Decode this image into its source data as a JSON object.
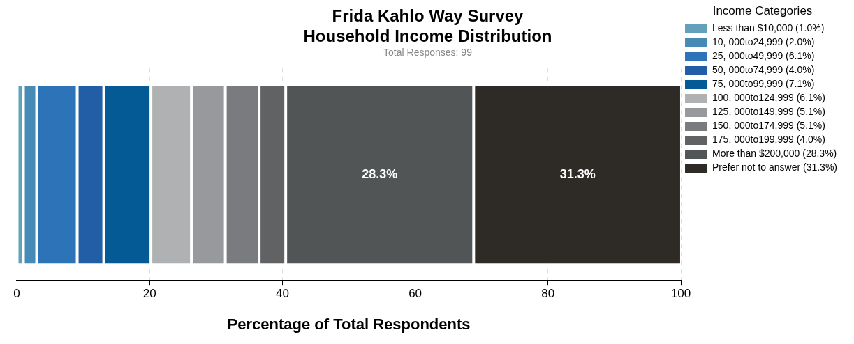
{
  "chart_data": {
    "type": "bar",
    "title": "Frida Kahlo Way Survey\nHousehold Income Distribution",
    "subtitle": "Total Responses: 99",
    "xlabel": "Percentage of Total Respondents",
    "legend_title": "Income Categories",
    "orientation": "horizontal",
    "stacked": true,
    "categories": [
      null
    ],
    "xlim": [
      0,
      100
    ],
    "xticks": [
      0,
      20,
      40,
      60,
      80,
      100
    ],
    "grid": "x",
    "legend": "right",
    "series": [
      {
        "name": "Less than $10,000 (1.0%)",
        "color": "#62a0bc",
        "values": [
          1.0
        ]
      },
      {
        "name": "10, 000to24,999 (2.0%)",
        "color": "#478ab5",
        "values": [
          2.0
        ]
      },
      {
        "name": "25, 000to49,999 (6.1%)",
        "color": "#2c74b7",
        "values": [
          6.1
        ]
      },
      {
        "name": "50, 000to74,999 (4.0%)",
        "color": "#215ea6",
        "values": [
          4.0
        ]
      },
      {
        "name": "75, 000to99,999 (7.1%)",
        "color": "#045a94",
        "values": [
          7.1
        ]
      },
      {
        "name": "100, 000to124,999 (6.1%)",
        "color": "#b0b1b3",
        "values": [
          6.1
        ]
      },
      {
        "name": "125, 000to149,999 (5.1%)",
        "color": "#98999c",
        "values": [
          5.1
        ]
      },
      {
        "name": "150, 000to174,999 (5.1%)",
        "color": "#7a7b7f",
        "values": [
          5.1
        ]
      },
      {
        "name": "175, 000to199,999 (4.0%)",
        "color": "#616264",
        "values": [
          4.0
        ]
      },
      {
        "name": "More than $200,000 (28.3%)",
        "color": "#525556",
        "values": [
          28.3
        ],
        "value_labels": [
          "28.3%"
        ]
      },
      {
        "name": "Prefer not to answer (31.3%)",
        "color": "#2e2b27",
        "values": [
          31.3
        ],
        "value_labels": [
          "31.3%"
        ]
      }
    ]
  }
}
